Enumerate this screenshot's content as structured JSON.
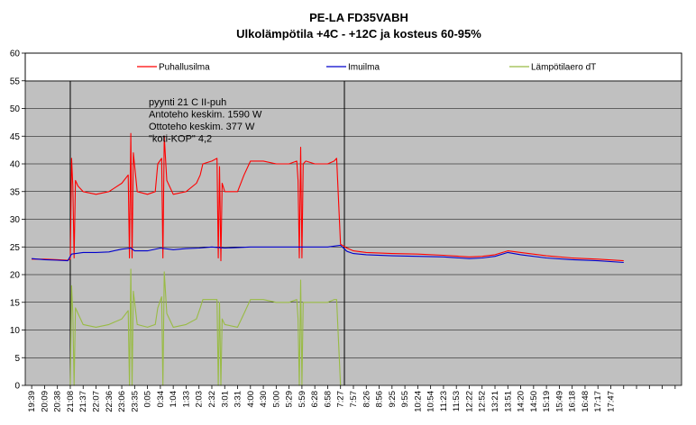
{
  "chart_data": {
    "type": "line",
    "title": "PE-LA FD35VABH",
    "subtitle": "Ulkolämpötila +4C - +12C ja kosteus 60-95%",
    "ylim": [
      0,
      60
    ],
    "yticks": [
      0,
      5,
      10,
      15,
      20,
      25,
      30,
      35,
      40,
      45,
      50,
      55,
      60
    ],
    "plot_ylim": [
      0,
      55
    ],
    "grid": true,
    "background": "#c0c0c0",
    "legend": {
      "placement": "top"
    },
    "x_labels": [
      "19:39",
      "20:09",
      "20:38",
      "21:08",
      "21:37",
      "22:07",
      "22:36",
      "23:06",
      "23:35",
      "0:05",
      "0:34",
      "1:04",
      "1:33",
      "2:03",
      "2:32",
      "3:01",
      "3:31",
      "4:00",
      "4:30",
      "5:00",
      "5:29",
      "5:59",
      "6:28",
      "6:58",
      "7:27",
      "7:57",
      "8:26",
      "8:56",
      "9:25",
      "9:55",
      "10:24",
      "10:54",
      "11:23",
      "11:53",
      "12:22",
      "12:52",
      "13:21",
      "13:51",
      "14:20",
      "14:50",
      "15:19",
      "15:49",
      "16:18",
      "16:48",
      "17:17",
      "17:47",
      "",
      "",
      "",
      "",
      ""
    ],
    "vlines": [
      3,
      24.3
    ],
    "annotation": [
      "pyynti 21 C II-puh",
      "Antoteho keskim. 1590 W",
      "Ottoteho keskim. 377 W",
      "\"koti-KOP\" 4,2"
    ],
    "series": [
      {
        "name": "Puhallusilma",
        "color": "#ff0000",
        "points": [
          [
            0,
            22.8
          ],
          [
            1,
            22.8
          ],
          [
            2,
            22.7
          ],
          [
            2.8,
            22.6
          ],
          [
            3.0,
            22.8
          ],
          [
            3.1,
            41
          ],
          [
            3.2,
            36
          ],
          [
            3.3,
            23
          ],
          [
            3.4,
            37
          ],
          [
            3.6,
            36
          ],
          [
            4,
            35
          ],
          [
            5,
            34.5
          ],
          [
            6,
            35
          ],
          [
            7,
            36.5
          ],
          [
            7.5,
            38
          ],
          [
            7.6,
            23
          ],
          [
            7.7,
            45.5
          ],
          [
            7.8,
            23
          ],
          [
            7.9,
            42
          ],
          [
            8.2,
            35
          ],
          [
            9,
            34.5
          ],
          [
            9.6,
            35
          ],
          [
            9.8,
            40
          ],
          [
            10.1,
            41
          ],
          [
            10.2,
            23
          ],
          [
            10.3,
            45
          ],
          [
            10.5,
            37
          ],
          [
            11,
            34.5
          ],
          [
            12,
            35
          ],
          [
            12.8,
            36.5
          ],
          [
            13.1,
            38
          ],
          [
            13.3,
            40
          ],
          [
            14,
            40.5
          ],
          [
            14.4,
            41
          ],
          [
            14.5,
            23
          ],
          [
            14.6,
            39.5
          ],
          [
            14.7,
            22.5
          ],
          [
            14.8,
            36.5
          ],
          [
            15,
            35
          ],
          [
            16,
            35
          ],
          [
            16.5,
            38
          ],
          [
            17,
            40.5
          ],
          [
            18,
            40.5
          ],
          [
            19,
            40
          ],
          [
            20,
            40
          ],
          [
            20.6,
            40.5
          ],
          [
            20.7,
            37
          ],
          [
            20.8,
            23
          ],
          [
            20.9,
            43
          ],
          [
            21.0,
            23
          ],
          [
            21.1,
            40
          ],
          [
            21.3,
            40.5
          ],
          [
            22,
            40
          ],
          [
            23,
            40
          ],
          [
            23.5,
            40.5
          ],
          [
            23.7,
            41
          ],
          [
            24.0,
            25.5
          ],
          [
            24.5,
            24.8
          ],
          [
            25,
            24.3
          ],
          [
            26,
            24
          ],
          [
            28,
            23.8
          ],
          [
            30,
            23.7
          ],
          [
            32,
            23.5
          ],
          [
            34,
            23.2
          ],
          [
            35,
            23.3
          ],
          [
            36,
            23.6
          ],
          [
            37,
            24.3
          ],
          [
            38,
            24
          ],
          [
            40,
            23.4
          ],
          [
            42,
            23
          ],
          [
            44,
            22.8
          ],
          [
            46,
            22.5
          ]
        ]
      },
      {
        "name": "Imuilma",
        "color": "#0000cc",
        "points": [
          [
            0,
            22.9
          ],
          [
            1,
            22.7
          ],
          [
            2,
            22.6
          ],
          [
            2.8,
            22.5
          ],
          [
            3.1,
            23.7
          ],
          [
            4,
            24
          ],
          [
            5,
            24
          ],
          [
            6,
            24.1
          ],
          [
            7,
            24.6
          ],
          [
            7.7,
            24.8
          ],
          [
            8,
            24.3
          ],
          [
            9,
            24.3
          ],
          [
            10,
            24.8
          ],
          [
            11,
            24.5
          ],
          [
            12,
            24.7
          ],
          [
            13,
            24.8
          ],
          [
            14,
            25
          ],
          [
            15,
            24.8
          ],
          [
            16,
            24.9
          ],
          [
            17,
            25
          ],
          [
            18,
            25
          ],
          [
            19,
            25
          ],
          [
            20,
            25
          ],
          [
            21,
            25
          ],
          [
            22,
            25
          ],
          [
            23,
            25
          ],
          [
            24,
            25.3
          ],
          [
            24.5,
            24.2
          ],
          [
            25,
            23.8
          ],
          [
            26,
            23.6
          ],
          [
            28,
            23.4
          ],
          [
            30,
            23.3
          ],
          [
            32,
            23.2
          ],
          [
            34,
            22.9
          ],
          [
            35,
            23
          ],
          [
            36,
            23.3
          ],
          [
            37,
            24
          ],
          [
            38,
            23.6
          ],
          [
            40,
            23
          ],
          [
            42,
            22.7
          ],
          [
            44,
            22.5
          ],
          [
            46,
            22.2
          ]
        ]
      },
      {
        "name": "Lämpötilaero dT",
        "color": "#99bb44",
        "points": [
          [
            3.0,
            0
          ],
          [
            3.1,
            18
          ],
          [
            3.2,
            13
          ],
          [
            3.3,
            0
          ],
          [
            3.4,
            14
          ],
          [
            3.6,
            13
          ],
          [
            4,
            11
          ],
          [
            5,
            10.5
          ],
          [
            6,
            11
          ],
          [
            7,
            12
          ],
          [
            7.5,
            13.5
          ],
          [
            7.6,
            0
          ],
          [
            7.7,
            21
          ],
          [
            7.8,
            0
          ],
          [
            7.9,
            17
          ],
          [
            8.2,
            11
          ],
          [
            9,
            10.5
          ],
          [
            9.6,
            11
          ],
          [
            9.8,
            14
          ],
          [
            10.1,
            16
          ],
          [
            10.2,
            0
          ],
          [
            10.3,
            20.5
          ],
          [
            10.5,
            13
          ],
          [
            11,
            10.5
          ],
          [
            12,
            11
          ],
          [
            12.8,
            12
          ],
          [
            13.1,
            14
          ],
          [
            13.3,
            15.5
          ],
          [
            14,
            15.5
          ],
          [
            14.4,
            15.5
          ],
          [
            14.5,
            0
          ],
          [
            14.6,
            15
          ],
          [
            14.7,
            0
          ],
          [
            14.8,
            12
          ],
          [
            15,
            11
          ],
          [
            16,
            10.5
          ],
          [
            16.5,
            13
          ],
          [
            17,
            15.5
          ],
          [
            18,
            15.5
          ],
          [
            19,
            15
          ],
          [
            20,
            15
          ],
          [
            20.6,
            15.5
          ],
          [
            20.7,
            12
          ],
          [
            20.8,
            0
          ],
          [
            20.9,
            19
          ],
          [
            21.0,
            0
          ],
          [
            21.1,
            15
          ],
          [
            21.3,
            15
          ],
          [
            22,
            15
          ],
          [
            23,
            15
          ],
          [
            23.5,
            15.5
          ],
          [
            23.7,
            15.5
          ],
          [
            24.0,
            0
          ]
        ]
      }
    ]
  }
}
